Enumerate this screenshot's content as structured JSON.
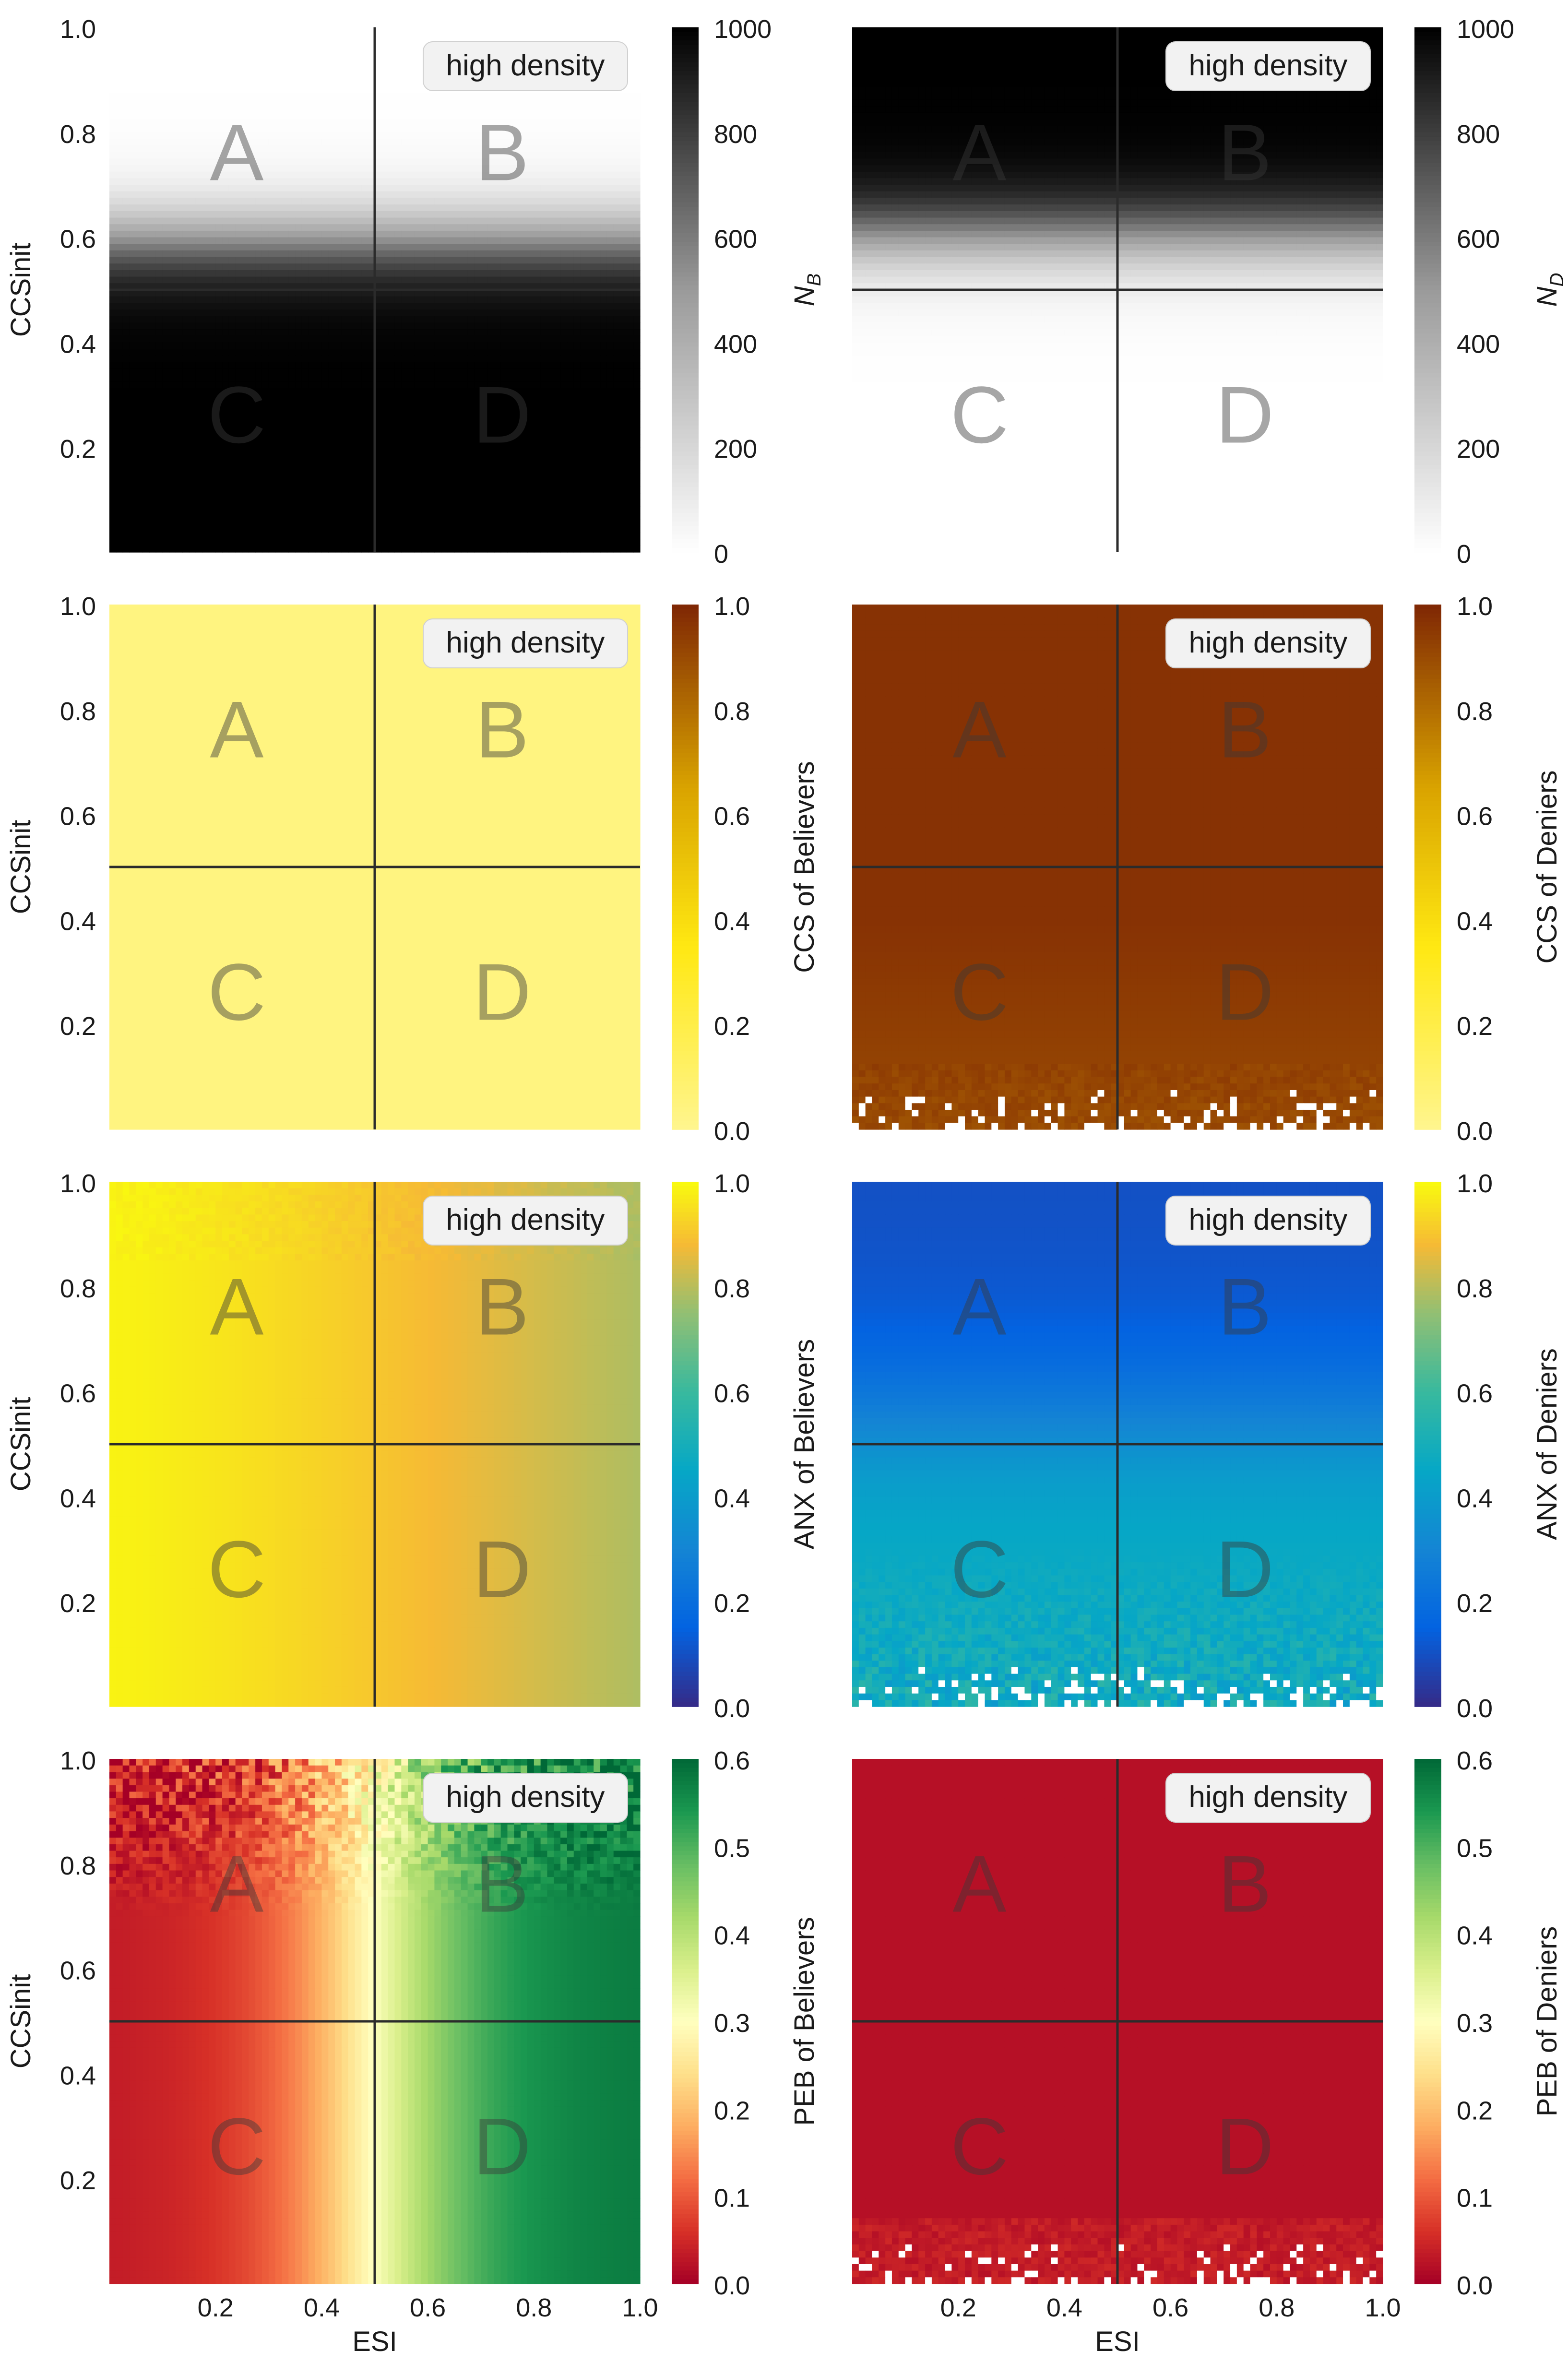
{
  "chart_data": [
    {
      "type": "heatmap",
      "id": "nb",
      "xlabel": "",
      "ylabel": "CCSinit",
      "colorbar_label": "N_B",
      "xlim": [
        0,
        1
      ],
      "ylim": [
        0,
        1
      ],
      "vmin": 0,
      "vmax": 1000,
      "cbar_ticks": [
        "0",
        "200",
        "400",
        "600",
        "800",
        "1000"
      ],
      "cbar_tick_values": [
        0,
        200,
        400,
        600,
        800,
        1000
      ],
      "x_ticks": [],
      "y_ticks": [
        "0.2",
        "0.4",
        "0.6",
        "0.8",
        "1.0"
      ],
      "colormap": "white-to-black",
      "field": "logistic in CCSinit: 1000 at CCSinit=0 falling to 0 at CCSinit=1, midpoint 0.6",
      "annotation": "high density",
      "quadrants": [
        "A",
        "B",
        "C",
        "D"
      ],
      "divider_x": 0.5,
      "divider_y": 0.5
    },
    {
      "type": "heatmap",
      "id": "nd",
      "xlabel": "",
      "ylabel": "",
      "colorbar_label": "N_D",
      "xlim": [
        0,
        1
      ],
      "ylim": [
        0,
        1
      ],
      "vmin": 0,
      "vmax": 1000,
      "cbar_ticks": [
        "0",
        "200",
        "400",
        "600",
        "800",
        "1000"
      ],
      "cbar_tick_values": [
        0,
        200,
        400,
        600,
        800,
        1000
      ],
      "x_ticks": [],
      "y_ticks": [],
      "colormap": "white-to-black",
      "field": "logistic in CCSinit: 0 at CCSinit=0 rising to 1000 at CCSinit=1, midpoint 0.6",
      "annotation": "high density",
      "quadrants": [
        "A",
        "B",
        "C",
        "D"
      ],
      "divider_x": 0.5,
      "divider_y": 0.5
    },
    {
      "type": "heatmap",
      "id": "ccsb",
      "xlabel": "",
      "ylabel": "CCSinit",
      "colorbar_label": "CCS of Believers",
      "xlim": [
        0,
        1
      ],
      "ylim": [
        0,
        1
      ],
      "vmin": 0,
      "vmax": 1,
      "cbar_ticks": [
        "0.0",
        "0.2",
        "0.4",
        "0.6",
        "0.8",
        "1.0"
      ],
      "cbar_tick_values": [
        0,
        0.2,
        0.4,
        0.6,
        0.8,
        1.0
      ],
      "x_ticks": [],
      "y_ticks": [
        "0.2",
        "0.4",
        "0.6",
        "0.8",
        "1.0"
      ],
      "colormap": "pale-yellow-to-brown",
      "field": "approximately 0.04 everywhere",
      "annotation": "high density",
      "quadrants": [
        "A",
        "B",
        "C",
        "D"
      ],
      "divider_x": 0.5,
      "divider_y": 0.5
    },
    {
      "type": "heatmap",
      "id": "ccsd",
      "xlabel": "",
      "ylabel": "",
      "colorbar_label": "CCS of Deniers",
      "xlim": [
        0,
        1
      ],
      "ylim": [
        0,
        1
      ],
      "vmin": 0,
      "vmax": 1,
      "cbar_ticks": [
        "0.0",
        "0.2",
        "0.4",
        "0.6",
        "0.8",
        "1.0"
      ],
      "cbar_tick_values": [
        0,
        0.2,
        0.4,
        0.6,
        0.8,
        1.0
      ],
      "x_ticks": [],
      "y_ticks": [],
      "colormap": "pale-yellow-to-brown",
      "field": "approximately 0.97 at high CCSinit, about 0.9 near CCSinit=0, empty cells near CCSinit < 0.08",
      "annotation": "high density",
      "quadrants": [
        "A",
        "B",
        "C",
        "D"
      ],
      "divider_x": 0.5,
      "divider_y": 0.5
    },
    {
      "type": "heatmap",
      "id": "anxb",
      "xlabel": "",
      "ylabel": "CCSinit",
      "colorbar_label": "ANX of Believers",
      "xlim": [
        0,
        1
      ],
      "ylim": [
        0,
        1
      ],
      "vmin": 0,
      "vmax": 1,
      "cbar_ticks": [
        "0.0",
        "0.2",
        "0.4",
        "0.6",
        "0.8",
        "1.0"
      ],
      "cbar_tick_values": [
        0,
        0.2,
        0.4,
        0.6,
        0.8,
        1.0
      ],
      "x_ticks": [],
      "y_ticks": [
        "0.2",
        "0.4",
        "0.6",
        "0.8",
        "1.0"
      ],
      "colormap": "parula",
      "field": "about 0.98 at ESI=0 decreasing to about 0.78 at ESI=1",
      "annotation": "high density",
      "quadrants": [
        "A",
        "B",
        "C",
        "D"
      ],
      "divider_x": 0.5,
      "divider_y": 0.5
    },
    {
      "type": "heatmap",
      "id": "anxd",
      "xlabel": "",
      "ylabel": "",
      "colorbar_label": "ANX of Deniers",
      "xlim": [
        0,
        1
      ],
      "ylim": [
        0,
        1
      ],
      "vmin": 0,
      "vmax": 1,
      "cbar_ticks": [
        "0.0",
        "0.2",
        "0.4",
        "0.6",
        "0.8",
        "1.0"
      ],
      "cbar_tick_values": [
        0,
        0.2,
        0.4,
        0.6,
        0.8,
        1.0
      ],
      "x_ticks": [],
      "y_ticks": [],
      "colormap": "parula",
      "field": "about 0.1 at CCSinit=1 rising to about 0.5 near CCSinit=0, noisy at low CCSinit",
      "annotation": "high density",
      "quadrants": [
        "A",
        "B",
        "C",
        "D"
      ],
      "divider_x": 0.5,
      "divider_y": 0.5
    },
    {
      "type": "heatmap",
      "id": "pebb",
      "xlabel": "ESI",
      "ylabel": "CCSinit",
      "colorbar_label": "PEB of Believers",
      "xlim": [
        0,
        1
      ],
      "ylim": [
        0,
        1
      ],
      "vmin": 0,
      "vmax": 0.6,
      "cbar_ticks": [
        "0.0",
        "0.1",
        "0.2",
        "0.3",
        "0.4",
        "0.5",
        "0.6"
      ],
      "cbar_tick_values": [
        0,
        0.1,
        0.2,
        0.3,
        0.4,
        0.5,
        0.6
      ],
      "x_ticks": [
        "0.2",
        "0.4",
        "0.6",
        "0.8",
        "1.0"
      ],
      "x_tick_values": [
        0.2,
        0.4,
        0.6,
        0.8,
        1.0
      ],
      "y_ticks": [
        "0.2",
        "0.4",
        "0.6",
        "0.8",
        "1.0"
      ],
      "colormap": "red-yellow-green",
      "field": "about 0.05 at ESI=0, 0.3 at ESI=0.5, 0.58 at ESI=1; noisy at high CCSinit",
      "annotation": "high density",
      "quadrants": [
        "A",
        "B",
        "C",
        "D"
      ],
      "divider_x": 0.5,
      "divider_y": 0.5
    },
    {
      "type": "heatmap",
      "id": "pebd",
      "xlabel": "ESI",
      "ylabel": "",
      "colorbar_label": "PEB of Deniers",
      "xlim": [
        0,
        1
      ],
      "ylim": [
        0,
        1
      ],
      "vmin": 0,
      "vmax": 0.6,
      "cbar_ticks": [
        "0.0",
        "0.1",
        "0.2",
        "0.3",
        "0.4",
        "0.5",
        "0.6"
      ],
      "cbar_tick_values": [
        0,
        0.1,
        0.2,
        0.3,
        0.4,
        0.5,
        0.6
      ],
      "x_ticks": [
        "0.2",
        "0.4",
        "0.6",
        "0.8",
        "1.0"
      ],
      "x_tick_values": [
        0.2,
        0.4,
        0.6,
        0.8,
        1.0
      ],
      "y_ticks": [],
      "colormap": "red-yellow-green",
      "field": "approximately 0.02 everywhere, empty cells near CCSinit < 0.08",
      "annotation": "high density",
      "quadrants": [
        "A",
        "B",
        "C",
        "D"
      ],
      "divider_x": 0.5,
      "divider_y": 0.5
    }
  ]
}
